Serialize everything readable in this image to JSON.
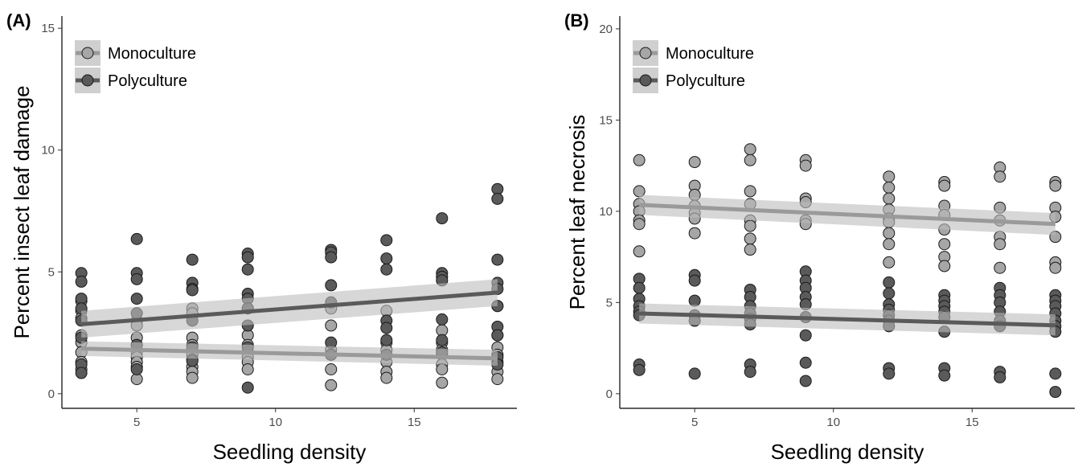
{
  "chart_data": [
    {
      "type": "scatter",
      "panel_label": "(A)",
      "xlabel": "Seedling density",
      "ylabel": "Percent insect leaf damage",
      "xlim": [
        2.3,
        18.7
      ],
      "ylim": [
        -0.6,
        15.5
      ],
      "xticks": [
        5,
        10,
        15
      ],
      "yticks": [
        0,
        5,
        10,
        15
      ],
      "grid": false,
      "legend": {
        "position": "top-left",
        "entries": [
          "Monoculture",
          "Polyculture"
        ]
      },
      "series": [
        {
          "name": "Monoculture",
          "color": "#a6a6a6",
          "line_color": "#9a9a9a",
          "points": [
            [
              3,
              3.8
            ],
            [
              3,
              3.4
            ],
            [
              3,
              3.1
            ],
            [
              3,
              2.4
            ],
            [
              3,
              2.1
            ],
            [
              3,
              1.7
            ],
            [
              3,
              1.3
            ],
            [
              3,
              1.0
            ],
            [
              5,
              3.0
            ],
            [
              5,
              2.8
            ],
            [
              5,
              2.3
            ],
            [
              5,
              2.0
            ],
            [
              5,
              1.7
            ],
            [
              5,
              1.5
            ],
            [
              5,
              1.3
            ],
            [
              5,
              1.1
            ],
            [
              5,
              0.6
            ],
            [
              7,
              3.5
            ],
            [
              7,
              3.3
            ],
            [
              7,
              2.3
            ],
            [
              7,
              2.0
            ],
            [
              7,
              1.6
            ],
            [
              7,
              1.4
            ],
            [
              7,
              1.1
            ],
            [
              7,
              0.9
            ],
            [
              7,
              0.65
            ],
            [
              9,
              3.5
            ],
            [
              9,
              2.4
            ],
            [
              9,
              2.0
            ],
            [
              9,
              1.7
            ],
            [
              9,
              1.5
            ],
            [
              9,
              1.3
            ],
            [
              9,
              1.0
            ],
            [
              12,
              3.5
            ],
            [
              12,
              2.8
            ],
            [
              12,
              1.8
            ],
            [
              12,
              1.6
            ],
            [
              12,
              1.0
            ],
            [
              12,
              0.35
            ],
            [
              14,
              3.4
            ],
            [
              14,
              2.1
            ],
            [
              14,
              1.8
            ],
            [
              14,
              1.3
            ],
            [
              14,
              0.9
            ],
            [
              14,
              0.65
            ],
            [
              16,
              2.6
            ],
            [
              16,
              2.1
            ],
            [
              16,
              1.8
            ],
            [
              16,
              1.6
            ],
            [
              16,
              1.2
            ],
            [
              16,
              1.0
            ],
            [
              16,
              0.45
            ],
            [
              18,
              3.6
            ],
            [
              18,
              2.4
            ],
            [
              18,
              1.9
            ],
            [
              18,
              1.6
            ],
            [
              18,
              1.3
            ],
            [
              18,
              0.9
            ],
            [
              18,
              0.6
            ]
          ],
          "trend": {
            "x": [
              3,
              18
            ],
            "y": [
              1.85,
              1.45
            ],
            "ci_lower": [
              1.55,
              1.15
            ],
            "ci_upper": [
              2.15,
              1.8
            ]
          }
        },
        {
          "name": "Polyculture",
          "color": "#5a5a5a",
          "line_color": "#5a5a5a",
          "points": [
            [
              3,
              4.95
            ],
            [
              3,
              4.6
            ],
            [
              3,
              3.9
            ],
            [
              3,
              3.5
            ],
            [
              3,
              3.0
            ],
            [
              3,
              2.3
            ],
            [
              3,
              1.2
            ],
            [
              3,
              0.85
            ],
            [
              5,
              6.35
            ],
            [
              5,
              4.95
            ],
            [
              5,
              4.7
            ],
            [
              5,
              3.9
            ],
            [
              5,
              3.3
            ],
            [
              5,
              2.0
            ],
            [
              5,
              1.0
            ],
            [
              7,
              5.5
            ],
            [
              7,
              4.55
            ],
            [
              7,
              4.3
            ],
            [
              7,
              4.25
            ],
            [
              7,
              3.0
            ],
            [
              7,
              1.9
            ],
            [
              7,
              1.35
            ],
            [
              9,
              5.75
            ],
            [
              9,
              5.6
            ],
            [
              9,
              5.1
            ],
            [
              9,
              4.1
            ],
            [
              9,
              3.9
            ],
            [
              9,
              3.5
            ],
            [
              9,
              2.8
            ],
            [
              9,
              1.9
            ],
            [
              9,
              0.25
            ],
            [
              12,
              5.9
            ],
            [
              12,
              5.8
            ],
            [
              12,
              5.6
            ],
            [
              12,
              4.45
            ],
            [
              12,
              3.75
            ],
            [
              12,
              2.1
            ],
            [
              12,
              1.6
            ],
            [
              14,
              6.3
            ],
            [
              14,
              5.55
            ],
            [
              14,
              5.1
            ],
            [
              14,
              3.0
            ],
            [
              14,
              2.7
            ],
            [
              14,
              2.2
            ],
            [
              14,
              1.6
            ],
            [
              16,
              7.2
            ],
            [
              16,
              4.95
            ],
            [
              16,
              4.8
            ],
            [
              16,
              4.65
            ],
            [
              16,
              3.05
            ],
            [
              16,
              2.2
            ],
            [
              16,
              1.7
            ],
            [
              18,
              8.4
            ],
            [
              18,
              8.0
            ],
            [
              18,
              5.5
            ],
            [
              18,
              4.55
            ],
            [
              18,
              4.3
            ],
            [
              18,
              3.6
            ],
            [
              18,
              2.75
            ],
            [
              18,
              2.4
            ],
            [
              18,
              1.5
            ],
            [
              18,
              1.2
            ]
          ],
          "trend": {
            "x": [
              3,
              18
            ],
            "y": [
              2.85,
              4.15
            ],
            "ci_lower": [
              2.3,
              3.6
            ],
            "ci_upper": [
              3.4,
              4.7
            ]
          }
        }
      ]
    },
    {
      "type": "scatter",
      "panel_label": "(B)",
      "xlabel": "Seedling density",
      "ylabel": "Percent leaf necrosis",
      "xlim": [
        2.3,
        18.7
      ],
      "ylim": [
        -0.8,
        20.7
      ],
      "xticks": [
        5,
        10,
        15
      ],
      "yticks": [
        0,
        5,
        10,
        15,
        20
      ],
      "grid": false,
      "legend": {
        "position": "top-left",
        "entries": [
          "Monoculture",
          "Polyculture"
        ]
      },
      "series": [
        {
          "name": "Monoculture",
          "color": "#a6a6a6",
          "line_color": "#9a9a9a",
          "points": [
            [
              3,
              12.8
            ],
            [
              3,
              11.1
            ],
            [
              3,
              10.4
            ],
            [
              3,
              10.0
            ],
            [
              3,
              9.5
            ],
            [
              3,
              9.3
            ],
            [
              3,
              7.8
            ],
            [
              5,
              12.7
            ],
            [
              5,
              11.4
            ],
            [
              5,
              10.9
            ],
            [
              5,
              10.3
            ],
            [
              5,
              9.9
            ],
            [
              5,
              9.6
            ],
            [
              5,
              8.8
            ],
            [
              7,
              13.4
            ],
            [
              7,
              12.8
            ],
            [
              7,
              11.1
            ],
            [
              7,
              10.4
            ],
            [
              7,
              9.5
            ],
            [
              7,
              9.2
            ],
            [
              7,
              8.5
            ],
            [
              7,
              7.9
            ],
            [
              9,
              12.8
            ],
            [
              9,
              12.5
            ],
            [
              9,
              10.7
            ],
            [
              9,
              10.5
            ],
            [
              9,
              9.5
            ],
            [
              9,
              9.3
            ],
            [
              12,
              11.9
            ],
            [
              12,
              11.3
            ],
            [
              12,
              10.7
            ],
            [
              12,
              10.1
            ],
            [
              12,
              9.6
            ],
            [
              12,
              9.4
            ],
            [
              12,
              8.8
            ],
            [
              12,
              8.2
            ],
            [
              12,
              7.2
            ],
            [
              14,
              11.6
            ],
            [
              14,
              11.4
            ],
            [
              14,
              10.3
            ],
            [
              14,
              9.8
            ],
            [
              14,
              9.0
            ],
            [
              14,
              8.2
            ],
            [
              14,
              7.5
            ],
            [
              14,
              7.0
            ],
            [
              16,
              12.4
            ],
            [
              16,
              11.9
            ],
            [
              16,
              10.2
            ],
            [
              16,
              9.5
            ],
            [
              16,
              8.6
            ],
            [
              16,
              8.2
            ],
            [
              16,
              6.9
            ],
            [
              18,
              11.6
            ],
            [
              18,
              11.4
            ],
            [
              18,
              10.2
            ],
            [
              18,
              9.7
            ],
            [
              18,
              8.6
            ],
            [
              18,
              7.2
            ],
            [
              18,
              6.9
            ]
          ],
          "trend": {
            "x": [
              3,
              18
            ],
            "y": [
              10.35,
              9.3
            ],
            "ci_lower": [
              9.8,
              8.7
            ],
            "ci_upper": [
              10.9,
              9.9
            ]
          }
        },
        {
          "name": "Polyculture",
          "color": "#5a5a5a",
          "line_color": "#5a5a5a",
          "points": [
            [
              3,
              6.3
            ],
            [
              3,
              5.8
            ],
            [
              3,
              5.2
            ],
            [
              3,
              4.8
            ],
            [
              3,
              4.5
            ],
            [
              3,
              4.3
            ],
            [
              3,
              1.6
            ],
            [
              3,
              1.3
            ],
            [
              5,
              6.5
            ],
            [
              5,
              6.2
            ],
            [
              5,
              5.1
            ],
            [
              5,
              4.3
            ],
            [
              5,
              4.0
            ],
            [
              5,
              1.1
            ],
            [
              7,
              5.7
            ],
            [
              7,
              5.3
            ],
            [
              7,
              4.8
            ],
            [
              7,
              4.4
            ],
            [
              7,
              4.1
            ],
            [
              7,
              3.8
            ],
            [
              7,
              1.6
            ],
            [
              7,
              1.2
            ],
            [
              9,
              6.7
            ],
            [
              9,
              6.2
            ],
            [
              9,
              5.8
            ],
            [
              9,
              5.3
            ],
            [
              9,
              4.9
            ],
            [
              9,
              4.2
            ],
            [
              9,
              3.2
            ],
            [
              9,
              1.7
            ],
            [
              9,
              0.7
            ],
            [
              12,
              6.1
            ],
            [
              12,
              5.5
            ],
            [
              12,
              4.9
            ],
            [
              12,
              4.6
            ],
            [
              12,
              4.3
            ],
            [
              12,
              4.0
            ],
            [
              12,
              3.7
            ],
            [
              12,
              1.4
            ],
            [
              12,
              1.1
            ],
            [
              14,
              5.4
            ],
            [
              14,
              5.1
            ],
            [
              14,
              4.8
            ],
            [
              14,
              4.5
            ],
            [
              14,
              4.2
            ],
            [
              14,
              3.4
            ],
            [
              14,
              1.4
            ],
            [
              14,
              1.0
            ],
            [
              16,
              5.8
            ],
            [
              16,
              5.4
            ],
            [
              16,
              5.0
            ],
            [
              16,
              4.5
            ],
            [
              16,
              4.0
            ],
            [
              16,
              3.7
            ],
            [
              16,
              1.2
            ],
            [
              16,
              0.9
            ],
            [
              18,
              5.4
            ],
            [
              18,
              5.1
            ],
            [
              18,
              4.8
            ],
            [
              18,
              4.4
            ],
            [
              18,
              4.0
            ],
            [
              18,
              3.7
            ],
            [
              18,
              3.4
            ],
            [
              18,
              1.1
            ],
            [
              18,
              0.1
            ]
          ],
          "trend": {
            "x": [
              3,
              18
            ],
            "y": [
              4.4,
              3.75
            ],
            "ci_lower": [
              3.85,
              3.2
            ],
            "ci_upper": [
              4.95,
              4.35
            ]
          }
        }
      ]
    }
  ]
}
